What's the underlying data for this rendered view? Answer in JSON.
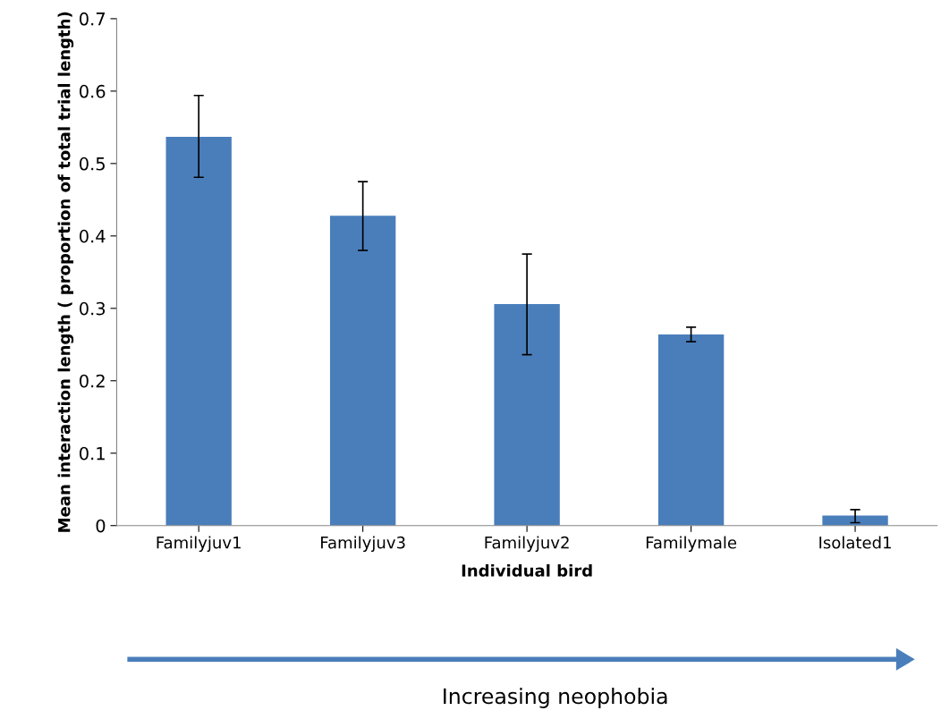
{
  "chart_data": {
    "type": "bar",
    "xlabel": "Individual bird",
    "ylabel": "Mean interaction length ( proportion of total trial length)",
    "categories": [
      "Familyjuv1",
      "Familyjuv3",
      "Familyjuv2",
      "Familymale",
      "Isolated1"
    ],
    "values": [
      0.537,
      0.428,
      0.306,
      0.264,
      0.014
    ],
    "errors": [
      [
        0.481,
        0.594
      ],
      [
        0.38,
        0.475
      ],
      [
        0.236,
        0.375
      ],
      [
        0.254,
        0.274
      ],
      [
        0.004,
        0.022
      ]
    ],
    "color": "#4a7ebb",
    "ylim": [
      0,
      0.7
    ],
    "yticks": [
      {
        "value": 0,
        "label": "0"
      },
      0.1,
      0.2,
      0.3,
      0.4,
      0.5,
      0.6,
      0.7
    ],
    "grid": false,
    "legend": false,
    "annotations": [
      "Increasing neophobia"
    ]
  }
}
